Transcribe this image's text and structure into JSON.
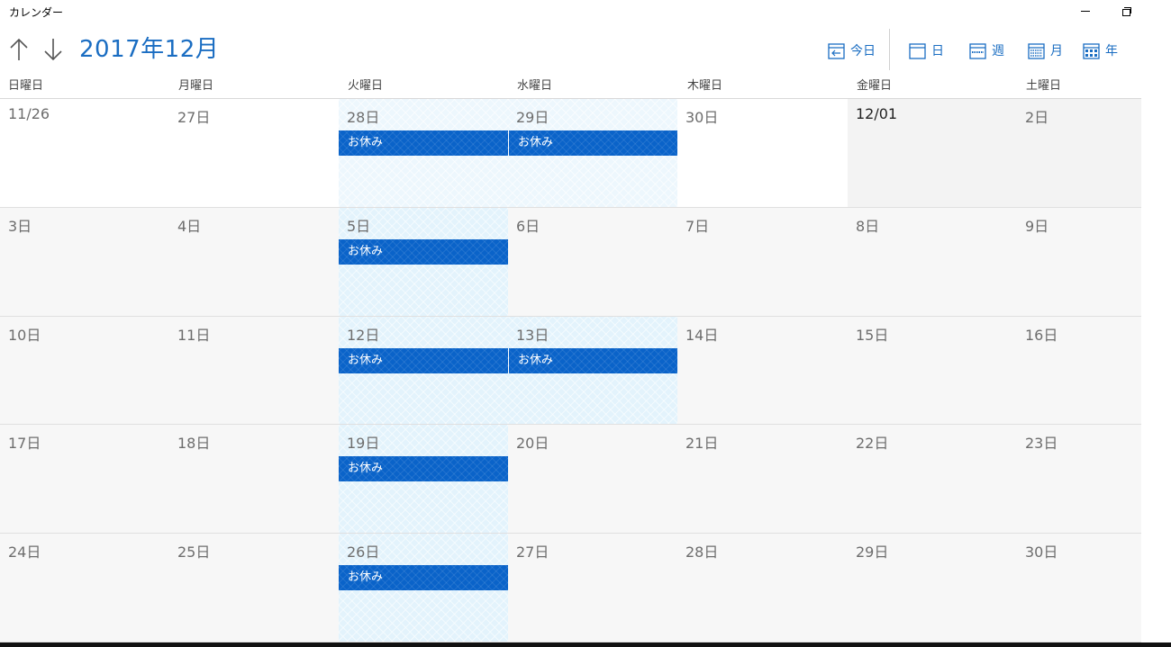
{
  "app": {
    "title": "カレンダー"
  },
  "toolbar": {
    "month_title": "2017年12月",
    "today_label": "今日",
    "day_label": "日",
    "week_label": "週",
    "month_label": "月",
    "year_label": "年"
  },
  "weekdays": [
    "日曜日",
    "月曜日",
    "火曜日",
    "水曜日",
    "木曜日",
    "金曜日",
    "土曜日"
  ],
  "weeks": [
    [
      "11/26",
      "27日",
      "28日",
      "29日",
      "30日",
      "12/01",
      "2日"
    ],
    [
      "3日",
      "4日",
      "5日",
      "6日",
      "7日",
      "8日",
      "9日"
    ],
    [
      "10日",
      "11日",
      "12日",
      "13日",
      "14日",
      "15日",
      "16日"
    ],
    [
      "17日",
      "18日",
      "19日",
      "20日",
      "21日",
      "22日",
      "23日"
    ],
    [
      "24日",
      "25日",
      "26日",
      "27日",
      "28日",
      "29日",
      "30日"
    ]
  ],
  "events": {
    "w0d2": "お休み",
    "w0d3": "お休み",
    "w1d2": "お休み",
    "w2d2": "お休み",
    "w2d3": "お休み",
    "w3d2": "お休み",
    "w4d2": "お休み"
  },
  "colors": {
    "accent": "#1a6dc2",
    "event": "#0a63c9",
    "highlight": "#e3f3fc"
  },
  "icons": [
    "arrow-up-icon",
    "arrow-down-icon",
    "today-icon",
    "day-view-icon",
    "week-view-icon",
    "month-view-icon",
    "year-view-icon",
    "minimize-icon",
    "restore-icon"
  ]
}
